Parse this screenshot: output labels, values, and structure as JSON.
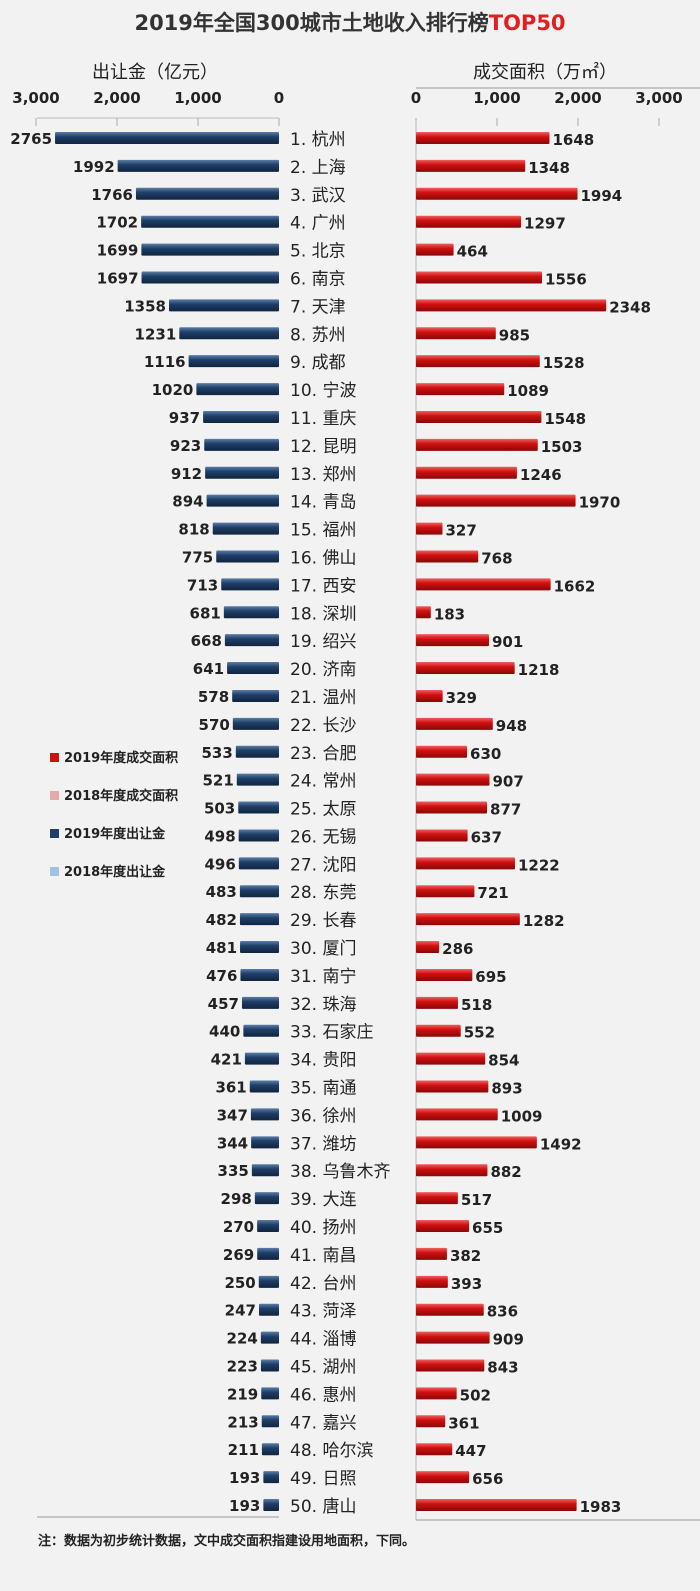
{
  "chart_data": {
    "type": "bar",
    "title": "2019年全国300城市土地收入排行榜",
    "title_highlight": "TOP50",
    "colors": {
      "area_2019": "#d01010",
      "area_2018": "#e8a8a8",
      "revenue_2019": "#1f3f68",
      "revenue_2018": "#9ec3e6",
      "highlight": "#e02020"
    },
    "left_axis": {
      "label": "出让金（亿元）",
      "ticks": [
        "3,000",
        "2,000",
        "1,000",
        "0"
      ],
      "range": [
        0,
        3000
      ],
      "direction": "reversed"
    },
    "right_axis": {
      "label": "成交面积（万㎡）",
      "ticks": [
        "0",
        "1,000",
        "2,000",
        "3,000"
      ],
      "range": [
        0,
        3000
      ]
    },
    "legend": [
      "2019年度成交面积",
      "2018年度成交面积",
      "2019年度出让金",
      "2018年度出让金"
    ],
    "legend_position": "left-middle",
    "categories": [
      "1. 杭州",
      "2. 上海",
      "3. 武汉",
      "4. 广州",
      "5. 北京",
      "6. 南京",
      "7. 天津",
      "8. 苏州",
      "9. 成都",
      "10. 宁波",
      "11. 重庆",
      "12. 昆明",
      "13. 郑州",
      "14. 青岛",
      "15. 福州",
      "16. 佛山",
      "17. 西安",
      "18. 深圳",
      "19. 绍兴",
      "20. 济南",
      "21. 温州",
      "22. 长沙",
      "23. 合肥",
      "24. 常州",
      "25. 太原",
      "26. 无锡",
      "27. 沈阳",
      "28. 东莞",
      "29. 长春",
      "30. 厦门",
      "31. 南宁",
      "32. 珠海",
      "33. 石家庄",
      "34. 贵阳",
      "35. 南通",
      "36. 徐州",
      "37. 潍坊",
      "38. 乌鲁木齐",
      "39. 大连",
      "40. 扬州",
      "41. 南昌",
      "42. 台州",
      "43. 菏泽",
      "44. 淄博",
      "45. 湖州",
      "46. 惠州",
      "47. 嘉兴",
      "48. 哈尔滨",
      "49. 日照",
      "50. 唐山"
    ],
    "series": [
      {
        "name": "2019年度出让金",
        "values": [
          2765,
          1992,
          1766,
          1702,
          1699,
          1697,
          1358,
          1231,
          1116,
          1020,
          937,
          923,
          912,
          894,
          818,
          775,
          713,
          681,
          668,
          641,
          578,
          570,
          533,
          521,
          503,
          498,
          496,
          483,
          482,
          481,
          476,
          457,
          440,
          421,
          361,
          347,
          344,
          335,
          298,
          270,
          269,
          250,
          247,
          224,
          223,
          219,
          213,
          211,
          193,
          193
        ]
      },
      {
        "name": "2019年度成交面积",
        "values": [
          1648,
          1348,
          1994,
          1297,
          464,
          1556,
          2348,
          985,
          1528,
          1089,
          1548,
          1503,
          1246,
          1970,
          327,
          768,
          1662,
          183,
          901,
          1218,
          329,
          948,
          630,
          907,
          877,
          637,
          1222,
          721,
          1282,
          286,
          695,
          518,
          552,
          854,
          893,
          1009,
          1492,
          882,
          517,
          655,
          382,
          393,
          836,
          909,
          843,
          502,
          361,
          447,
          656,
          1983
        ]
      }
    ]
  },
  "footer": {
    "note": "注：数据为初步统计数据，文中成交面积指建设用地面积，下同。"
  }
}
